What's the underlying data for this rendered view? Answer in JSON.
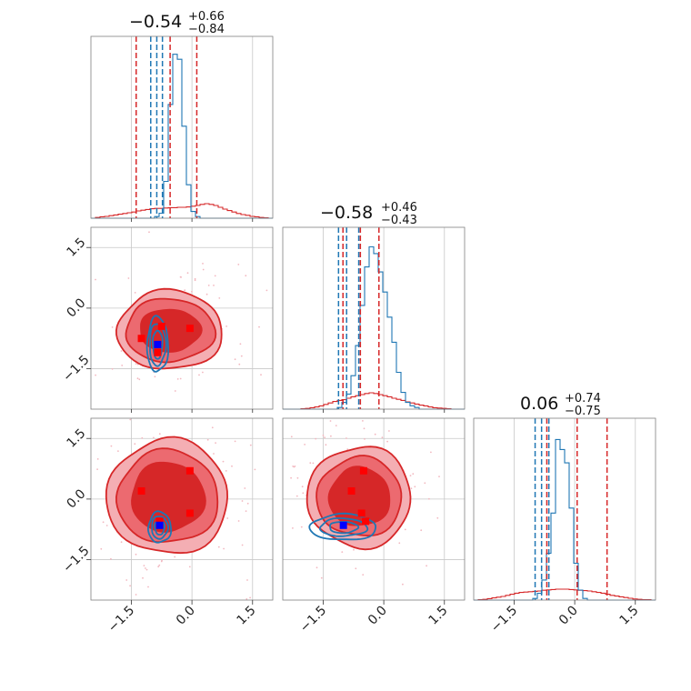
{
  "chart_data": {
    "type": "corner",
    "description_parameters": 3,
    "title": "",
    "colors": {
      "red": "#d62728",
      "red_light": "#f08a8f",
      "red_mid": "#ec6a70",
      "blue": "#1f77b4",
      "blue_marker": "#0000ff",
      "red_marker": "#ff0000"
    },
    "axis_range": [
      -2.5,
      2.0
    ],
    "ticks": [
      -1.5,
      0.0,
      1.5
    ],
    "tick_labels": [
      "−1.5",
      "0.0",
      "1.5"
    ],
    "grid": true,
    "titles": [
      {
        "main": "−0.54",
        "sup": "+0.66",
        "sub": "−0.84"
      },
      {
        "main": "−0.58",
        "sup": "+0.46",
        "sub": "−0.43"
      },
      {
        "main": "0.06",
        "sup": "+0.74",
        "sub": "−0.75"
      }
    ],
    "red_quantiles": [
      [
        -1.38,
        -0.54,
        0.12
      ],
      [
        -1.01,
        -0.58,
        -0.12
      ],
      [
        -0.69,
        0.06,
        0.8
      ]
    ],
    "blue_quantiles": [
      [
        -1.02,
        -0.87,
        -0.73
      ],
      [
        -1.12,
        -0.92,
        -0.62
      ],
      [
        -0.98,
        -0.82,
        -0.64
      ]
    ],
    "red_hist": [
      {
        "x0": -2.5,
        "x1": 2.0,
        "values": [
          0.0,
          0.02,
          0.04,
          0.05,
          0.07,
          0.09,
          0.11,
          0.13,
          0.15,
          0.17,
          0.2,
          0.22,
          0.24,
          0.26,
          0.27,
          0.27,
          0.28,
          0.29,
          0.29,
          0.3,
          0.3,
          0.31,
          0.33,
          0.35,
          0.38,
          0.4,
          0.38,
          0.35,
          0.3,
          0.25,
          0.21,
          0.17,
          0.13,
          0.1,
          0.08,
          0.05,
          0.04,
          0.02,
          0.01,
          0.0
        ]
      },
      {
        "x0": -2.5,
        "x1": 2.0,
        "values": [
          0.0,
          0.0,
          0.0,
          0.0,
          0.01,
          0.02,
          0.04,
          0.06,
          0.09,
          0.13,
          0.17,
          0.21,
          0.24,
          0.26,
          0.3,
          0.34,
          0.37,
          0.4,
          0.43,
          0.45,
          0.43,
          0.4,
          0.37,
          0.34,
          0.3,
          0.27,
          0.24,
          0.2,
          0.17,
          0.14,
          0.11,
          0.09,
          0.06,
          0.04,
          0.03,
          0.02,
          0.01,
          0.0,
          0.0,
          0.0
        ]
      },
      {
        "x0": -2.5,
        "x1": 2.0,
        "values": [
          0.0,
          0.01,
          0.02,
          0.04,
          0.06,
          0.08,
          0.1,
          0.13,
          0.16,
          0.19,
          0.21,
          0.22,
          0.23,
          0.24,
          0.25,
          0.27,
          0.28,
          0.29,
          0.3,
          0.3,
          0.3,
          0.29,
          0.28,
          0.27,
          0.26,
          0.25,
          0.23,
          0.21,
          0.19,
          0.16,
          0.13,
          0.11,
          0.09,
          0.07,
          0.05,
          0.03,
          0.02,
          0.01,
          0.01,
          0.0
        ]
      }
    ],
    "blue_hist": [
      {
        "x0": -2.5,
        "x1": 2.0,
        "values": [
          0,
          0,
          0,
          0,
          0,
          0,
          0,
          0,
          0,
          0,
          0,
          0,
          0,
          0,
          0.01,
          0.03,
          0.22,
          0.68,
          0.98,
          0.95,
          0.55,
          0.2,
          0.04,
          0.01,
          0,
          0,
          0,
          0,
          0,
          0,
          0,
          0,
          0,
          0,
          0,
          0,
          0,
          0,
          0,
          0
        ]
      },
      {
        "x0": -2.5,
        "x1": 2.0,
        "values": [
          0,
          0,
          0,
          0,
          0,
          0,
          0,
          0,
          0,
          0,
          0,
          0,
          0.01,
          0.04,
          0.09,
          0.2,
          0.38,
          0.62,
          0.85,
          0.97,
          0.93,
          0.82,
          0.7,
          0.55,
          0.4,
          0.22,
          0.1,
          0.04,
          0.02,
          0.01,
          0,
          0,
          0,
          0,
          0,
          0,
          0,
          0,
          0,
          0
        ]
      },
      {
        "x0": -2.5,
        "x1": 2.0,
        "values": [
          0,
          0,
          0,
          0,
          0,
          0,
          0,
          0,
          0,
          0,
          0,
          0,
          0,
          0.01,
          0.04,
          0.12,
          0.28,
          0.52,
          0.96,
          0.9,
          0.82,
          0.55,
          0.22,
          0.06,
          0.01,
          0,
          0,
          0,
          0,
          0,
          0,
          0,
          0,
          0,
          0,
          0,
          0,
          0,
          0,
          0
        ]
      }
    ],
    "red_points": [
      {
        "panel": "1-0",
        "points": [
          [
            -1.25,
            -0.75
          ],
          [
            -0.75,
            -0.45
          ],
          [
            -0.05,
            -0.5
          ],
          [
            -0.85,
            -1.1
          ]
        ]
      },
      {
        "panel": "2-0",
        "points": [
          [
            -1.25,
            0.2
          ],
          [
            -0.05,
            0.7
          ],
          [
            -0.05,
            -0.35
          ],
          [
            -0.8,
            -0.55
          ]
        ]
      },
      {
        "panel": "2-1",
        "points": [
          [
            -0.5,
            0.7
          ],
          [
            -0.8,
            0.2
          ],
          [
            -0.55,
            -0.35
          ],
          [
            -0.45,
            -0.55
          ]
        ]
      }
    ],
    "blue_points": [
      {
        "panel": "1-0",
        "points": [
          [
            -0.85,
            -0.9
          ]
        ]
      },
      {
        "panel": "2-0",
        "points": [
          [
            -0.8,
            -0.65
          ]
        ]
      },
      {
        "panel": "2-1",
        "points": [
          [
            -1.0,
            -0.65
          ]
        ]
      }
    ],
    "contours_red": [
      {
        "panel": "1-0",
        "center": [
          -0.55,
          -0.55
        ],
        "radii": [
          [
            0.75,
            0.52
          ],
          [
            1.1,
            0.78
          ],
          [
            1.3,
            0.98
          ]
        ]
      },
      {
        "panel": "2-0",
        "center": [
          -0.6,
          0.05
        ],
        "radii": [
          [
            0.9,
            0.85
          ],
          [
            1.25,
            1.15
          ],
          [
            1.5,
            1.42
          ]
        ]
      },
      {
        "panel": "2-1",
        "center": [
          -0.6,
          0.05
        ],
        "radii": [
          [
            0.75,
            0.72
          ],
          [
            1.05,
            0.98
          ],
          [
            1.28,
            1.25
          ]
        ]
      }
    ],
    "contours_blue": [
      {
        "panel": "1-0",
        "center": [
          -0.85,
          -0.9
        ],
        "radii": [
          [
            0.12,
            0.35
          ],
          [
            0.2,
            0.52
          ],
          [
            0.26,
            0.68
          ]
        ]
      },
      {
        "panel": "2-0",
        "center": [
          -0.8,
          -0.7
        ],
        "radii": [
          [
            0.12,
            0.18
          ],
          [
            0.2,
            0.28
          ],
          [
            0.28,
            0.38
          ]
        ]
      },
      {
        "panel": "2-1",
        "center": [
          -1.0,
          -0.7
        ],
        "radii": [
          [
            0.35,
            0.14
          ],
          [
            0.58,
            0.22
          ],
          [
            0.82,
            0.32
          ]
        ]
      }
    ]
  }
}
